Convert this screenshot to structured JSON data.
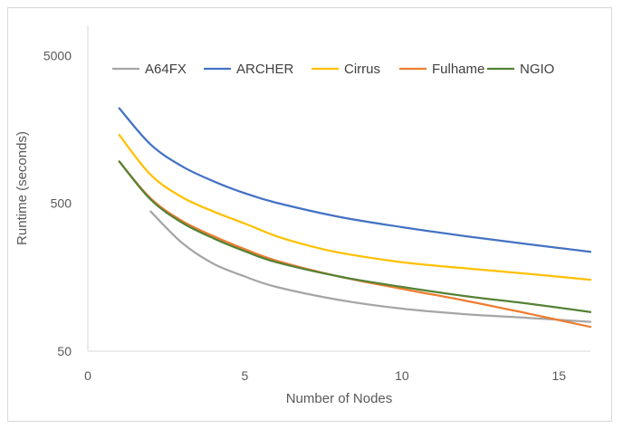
{
  "chart_data": {
    "type": "line",
    "title": "",
    "xlabel": "Number of Nodes",
    "ylabel": "Runtime (seconds)",
    "xlim": [
      0,
      16
    ],
    "ylim": [
      50,
      8000
    ],
    "y_scale": "log",
    "x_ticks": [
      0,
      5,
      10,
      15
    ],
    "y_ticks": [
      50,
      500,
      5000
    ],
    "grid": false,
    "legend_position": "top",
    "series": [
      {
        "name": "A64FX",
        "color": "#a5a5a5",
        "x": [
          2,
          3,
          4,
          5,
          6,
          8,
          10,
          12,
          14,
          16
        ],
        "y": [
          440,
          270,
          195,
          160,
          136,
          111,
          97,
          89,
          84,
          79
        ]
      },
      {
        "name": "ARCHER",
        "color": "#4472c4",
        "x": [
          1,
          2,
          3,
          4,
          5,
          6,
          8,
          10,
          12,
          14,
          16
        ],
        "y": [
          2200,
          1250,
          890,
          705,
          585,
          505,
          405,
          345,
          300,
          265,
          235
        ]
      },
      {
        "name": "Cirrus",
        "color": "#ffc000",
        "x": [
          1,
          2,
          3,
          4,
          5,
          6,
          7,
          8,
          10,
          12,
          14,
          16
        ],
        "y": [
          1450,
          780,
          550,
          440,
          365,
          300,
          260,
          232,
          200,
          182,
          167,
          152
        ]
      },
      {
        "name": "Fulhame",
        "color": "#ed7d31",
        "x": [
          1,
          2,
          3,
          4,
          5,
          6,
          8,
          10,
          12,
          14,
          16
        ],
        "y": [
          960,
          540,
          380,
          300,
          245,
          205,
          160,
          132,
          110,
          90,
          73
        ]
      },
      {
        "name": "NGIO",
        "color": "#548235",
        "x": [
          1,
          2,
          3,
          4,
          5,
          6,
          8,
          10,
          12,
          14,
          16
        ],
        "y": [
          960,
          530,
          370,
          290,
          237,
          200,
          160,
          136,
          118,
          105,
          92
        ]
      }
    ]
  }
}
